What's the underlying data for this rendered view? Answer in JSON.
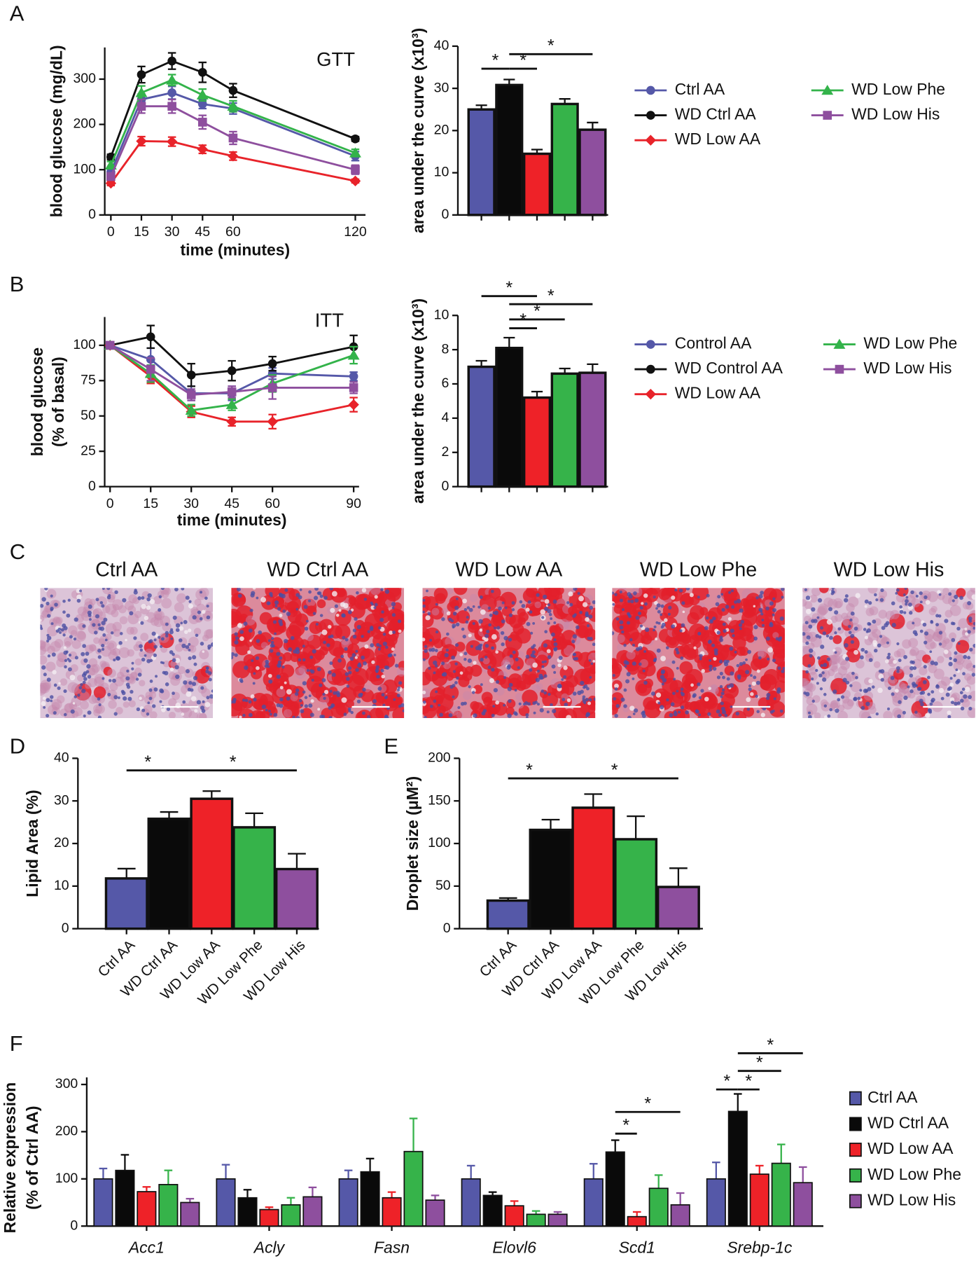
{
  "chart_data": [
    {
      "type": "line",
      "panel": "A",
      "annotation": "GTT",
      "xlabel": "time (minutes)",
      "ylabel": "blood glucose (mg/dL)",
      "x": [
        0,
        15,
        30,
        45,
        60,
        120
      ],
      "xlim": [
        -3,
        125
      ],
      "xticks": [
        0,
        15,
        30,
        45,
        60,
        120
      ],
      "ylim": [
        0,
        370
      ],
      "yticks": [
        0,
        100,
        200,
        300
      ],
      "series": [
        {
          "name": "Ctrl AA",
          "color": "#5558a8",
          "marker": "circle",
          "values": [
            95,
            255,
            270,
            245,
            235,
            130
          ],
          "errors": [
            8,
            12,
            14,
            10,
            12,
            10
          ]
        },
        {
          "name": "WD Ctrl AA",
          "color": "#111111",
          "marker": "circle",
          "values": [
            128,
            310,
            340,
            315,
            275,
            168
          ],
          "errors": [
            6,
            18,
            18,
            22,
            15,
            5
          ]
        },
        {
          "name": "WD Low AA",
          "color": "#e8232a",
          "marker": "diamond",
          "values": [
            70,
            163,
            162,
            145,
            130,
            75
          ],
          "errors": [
            5,
            10,
            10,
            9,
            9,
            4
          ]
        },
        {
          "name": "WD Low Phe",
          "color": "#33b34a",
          "marker": "triangle",
          "values": [
            110,
            270,
            298,
            265,
            240,
            137
          ],
          "errors": [
            8,
            15,
            12,
            13,
            12,
            8
          ]
        },
        {
          "name": "WD Low His",
          "color": "#8e4f9e",
          "marker": "square",
          "values": [
            85,
            240,
            240,
            205,
            170,
            100
          ],
          "errors": [
            8,
            15,
            15,
            15,
            14,
            10
          ]
        }
      ]
    },
    {
      "type": "bar",
      "ylabel": "area under the curve (x10³)",
      "categories": [
        null,
        null,
        null,
        null,
        null
      ],
      "values": [
        25,
        30.8,
        14.5,
        26.3,
        20.2
      ],
      "errors": [
        1,
        1.3,
        1,
        1.2,
        1.7
      ],
      "colors": [
        "#5558a8",
        "#0a0a0a",
        "#ee2228",
        "#36b34a",
        "#8e4f9e"
      ],
      "ylim": [
        0,
        40
      ],
      "yticks": [
        0,
        10,
        20,
        30,
        40
      ],
      "brackets": [
        {
          "from": 0,
          "to": 1,
          "label": "*"
        },
        {
          "from": 1,
          "to": 2,
          "label": "*"
        },
        {
          "from": 1,
          "to": 4,
          "label": "*"
        }
      ]
    },
    {
      "type": "line",
      "panel": "B",
      "annotation": "ITT",
      "xlabel": "time (minutes)",
      "ylabel": [
        "blood glucose",
        "(% of basal)"
      ],
      "x": [
        0,
        15,
        30,
        45,
        60,
        90
      ],
      "xlim": [
        -2,
        92
      ],
      "xticks": [
        0,
        15,
        30,
        45,
        60,
        90
      ],
      "ylim": [
        0,
        120
      ],
      "yticks": [
        0,
        25,
        50,
        75,
        100
      ],
      "series": [
        {
          "name": "Control AA",
          "color": "#5558a8",
          "marker": "circle",
          "values": [
            100,
            90,
            66,
            66,
            80,
            78
          ],
          "errors": [
            0,
            8,
            5,
            5,
            4,
            3
          ]
        },
        {
          "name": "WD Control AA",
          "color": "#111111",
          "marker": "circle",
          "values": [
            100,
            106,
            79,
            82,
            87,
            99
          ],
          "errors": [
            0,
            8,
            8,
            7,
            5,
            8
          ]
        },
        {
          "name": "WD Low AA",
          "color": "#e8232a",
          "marker": "diamond",
          "values": [
            100,
            78,
            53,
            46,
            46,
            58
          ],
          "errors": [
            0,
            5,
            4,
            3,
            5,
            5
          ]
        },
        {
          "name": "WD Low Phe",
          "color": "#33b34a",
          "marker": "triangle",
          "values": [
            100,
            80,
            54,
            58,
            73,
            93
          ],
          "errors": [
            0,
            6,
            4,
            4,
            6,
            6
          ]
        },
        {
          "name": "WD Low His",
          "color": "#8e4f9e",
          "marker": "square",
          "values": [
            100,
            83,
            65,
            67,
            70,
            70
          ],
          "errors": [
            0,
            8,
            4,
            4,
            8,
            4
          ]
        }
      ]
    },
    {
      "type": "bar",
      "ylabel": "area under the curve (x10³)",
      "categories": [
        null,
        null,
        null,
        null,
        null
      ],
      "values": [
        7,
        8.1,
        5.2,
        6.6,
        6.65
      ],
      "errors": [
        0.35,
        0.6,
        0.35,
        0.3,
        0.5
      ],
      "colors": [
        "#5558a8",
        "#0a0a0a",
        "#ee2228",
        "#36b34a",
        "#8e4f9e"
      ],
      "ylim": [
        0,
        10
      ],
      "yticks": [
        0,
        2,
        4,
        6,
        8,
        10
      ],
      "brackets": [
        {
          "from": 0,
          "to": 2,
          "label": "*"
        },
        {
          "from": 1,
          "to": 4,
          "label": "*"
        },
        {
          "from": 1,
          "to": 3,
          "label": "*"
        },
        {
          "from": 1,
          "to": 2,
          "label": "*"
        }
      ]
    },
    {
      "type": "images",
      "panel": "C",
      "titles": [
        "Ctrl AA",
        "WD Ctrl AA",
        "WD Low AA",
        "WD Low Phe",
        "WD Low His"
      ]
    },
    {
      "type": "bar",
      "panel": "D",
      "ylabel": "Lipid Area (%)",
      "categories": [
        "Ctrl AA",
        "WD Ctrl AA",
        "WD Low AA",
        "WD Low Phe",
        "WD Low His"
      ],
      "values": [
        11.8,
        25.8,
        30.5,
        23.8,
        14
      ],
      "errors": [
        2.3,
        1.6,
        1.8,
        3.3,
        3.6
      ],
      "colors": [
        "#5558a8",
        "#0a0a0a",
        "#ee2228",
        "#36b34a",
        "#8e4f9e"
      ],
      "ylim": [
        0,
        40
      ],
      "yticks": [
        0,
        10,
        20,
        30,
        40
      ],
      "brackets": [
        {
          "from": 0,
          "to": 1,
          "label": "*"
        },
        {
          "from": 1,
          "to": 4,
          "label": "*"
        }
      ]
    },
    {
      "type": "bar",
      "panel": "E",
      "ylabel": "Droplet size (μM²)",
      "categories": [
        "Ctrl AA",
        "WD Ctrl AA",
        "WD Low AA",
        "WD Low Phe",
        "WD Low His"
      ],
      "values": [
        33,
        116,
        142,
        105,
        49
      ],
      "errors": [
        3,
        12,
        16,
        27,
        22
      ],
      "colors": [
        "#5558a8",
        "#0a0a0a",
        "#ee2228",
        "#36b34a",
        "#8e4f9e"
      ],
      "ylim": [
        0,
        200
      ],
      "yticks": [
        0,
        50,
        100,
        150,
        200
      ],
      "brackets": [
        {
          "from": 0,
          "to": 1,
          "label": "*"
        },
        {
          "from": 1,
          "to": 4,
          "label": "*"
        }
      ]
    },
    {
      "type": "bar",
      "panel": "F",
      "ylabel": [
        "Relative expression",
        "(% of Ctrl AA)"
      ],
      "categories": [
        "Acc1",
        "Acly",
        "Fasn",
        "Elovl6",
        "Scd1",
        "Srebp-1c"
      ],
      "ylim": [
        0,
        315
      ],
      "yticks": [
        0,
        100,
        200,
        300
      ],
      "series": [
        {
          "name": "Ctrl AA",
          "color": "#5558a8",
          "values": [
            100,
            100,
            100,
            100,
            100,
            100
          ],
          "errors": [
            22,
            30,
            18,
            28,
            32,
            35
          ]
        },
        {
          "name": "WD Ctrl AA",
          "color": "#0a0a0a",
          "values": [
            118,
            60,
            115,
            65,
            157,
            243
          ],
          "errors": [
            33,
            17,
            28,
            7,
            25,
            37
          ]
        },
        {
          "name": "WD Low AA",
          "color": "#ee2228",
          "values": [
            73,
            35,
            60,
            43,
            20,
            110
          ],
          "errors": [
            10,
            5,
            12,
            10,
            10,
            18
          ]
        },
        {
          "name": "WD Low Phe",
          "color": "#36b34a",
          "values": [
            88,
            45,
            158,
            25,
            80,
            133
          ],
          "errors": [
            30,
            15,
            70,
            7,
            28,
            40
          ]
        },
        {
          "name": "WD Low His",
          "color": "#8e4f9e",
          "values": [
            50,
            62,
            55,
            25,
            45,
            92
          ],
          "errors": [
            8,
            20,
            10,
            5,
            25,
            33
          ]
        }
      ],
      "brackets": [
        {
          "group": 4,
          "from": 1,
          "to": 2,
          "label": "*"
        },
        {
          "group": 4,
          "from": 1,
          "to": 4,
          "label": "*"
        },
        {
          "group": 5,
          "from": 0,
          "to": 1,
          "label": "*"
        },
        {
          "group": 5,
          "from": 1,
          "to": 2,
          "label": "*"
        },
        {
          "group": 5,
          "from": 1,
          "to": 3,
          "label": "*"
        },
        {
          "group": 5,
          "from": 1,
          "to": 4,
          "label": "*"
        }
      ]
    }
  ]
}
